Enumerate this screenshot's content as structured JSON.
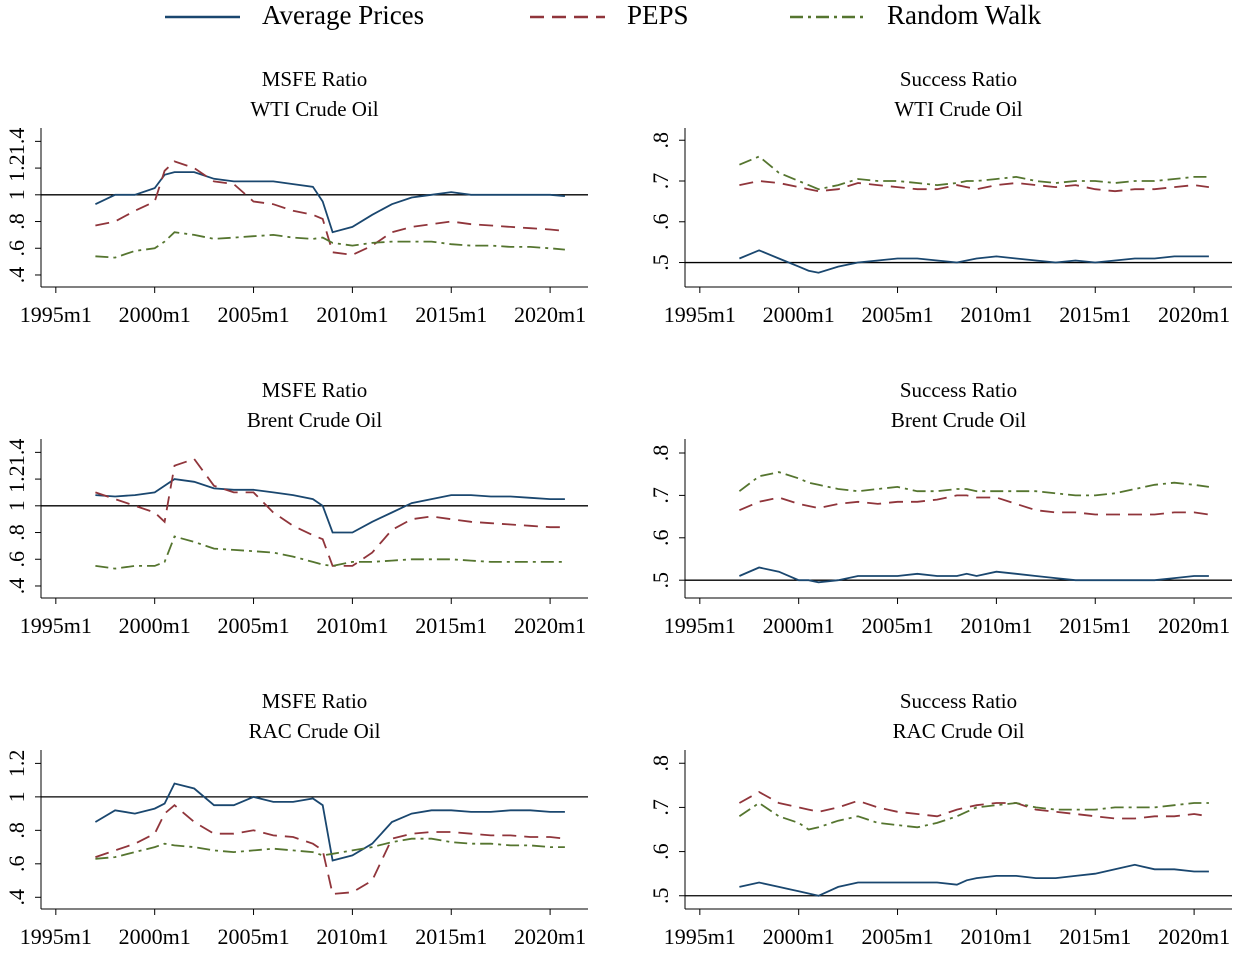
{
  "chart_data": [
    {
      "type": "line",
      "title": "MSFE Ratio",
      "subtitle": "WTI Crude Oil",
      "x": [
        "1997m1",
        "1998m1",
        "1999m1",
        "2000m1",
        "2000m7",
        "2001m1",
        "2002m1",
        "2003m1",
        "2004m1",
        "2005m1",
        "2006m1",
        "2007m1",
        "2008m1",
        "2008m7",
        "2009m1",
        "2010m1",
        "2011m1",
        "2012m1",
        "2013m1",
        "2014m1",
        "2015m1",
        "2016m1",
        "2017m1",
        "2018m1",
        "2019m1",
        "2020m1",
        "2020m10"
      ],
      "xlim": [
        "1994m4",
        "2021m12"
      ],
      "xticks": [
        "1995m1",
        "2000m1",
        "2005m1",
        "2010m1",
        "2015m1",
        "2020m1"
      ],
      "ylim": [
        0.31,
        1.5
      ],
      "yticks": [
        {
          "value": 0.4,
          "label": ".4"
        },
        {
          "value": 0.6,
          "label": ".6"
        },
        {
          "value": 0.8,
          "label": ".8"
        },
        1,
        1.2,
        1.4
      ],
      "hline": 1,
      "series": [
        {
          "name": "Average Prices",
          "color": "#1a476f",
          "style": "solid",
          "values": [
            0.93,
            1.0,
            1.0,
            1.05,
            1.15,
            1.17,
            1.17,
            1.12,
            1.1,
            1.1,
            1.1,
            1.08,
            1.06,
            0.95,
            0.72,
            0.76,
            0.85,
            0.93,
            0.98,
            1.0,
            1.02,
            1.0,
            1.0,
            1.0,
            1.0,
            1.0,
            0.99
          ]
        },
        {
          "name": "PEPS",
          "color": "#90353b",
          "style": "dash",
          "values": [
            0.77,
            0.8,
            0.88,
            0.95,
            1.18,
            1.25,
            1.2,
            1.1,
            1.08,
            0.95,
            0.93,
            0.88,
            0.85,
            0.82,
            0.57,
            0.55,
            0.62,
            0.72,
            0.76,
            0.78,
            0.8,
            0.78,
            0.77,
            0.76,
            0.75,
            0.74,
            0.73
          ]
        },
        {
          "name": "Random Walk",
          "color": "#55752f",
          "style": "dashdot",
          "values": [
            0.54,
            0.53,
            0.58,
            0.6,
            0.65,
            0.72,
            0.7,
            0.67,
            0.68,
            0.69,
            0.7,
            0.68,
            0.67,
            0.68,
            0.64,
            0.62,
            0.64,
            0.65,
            0.65,
            0.65,
            0.63,
            0.62,
            0.62,
            0.61,
            0.61,
            0.6,
            0.59
          ]
        }
      ]
    },
    {
      "type": "line",
      "title": "Success Ratio",
      "subtitle": "WTI Crude Oil",
      "x": [
        "1997m1",
        "1998m1",
        "1999m1",
        "2000m1",
        "2000m7",
        "2001m1",
        "2002m1",
        "2003m1",
        "2004m1",
        "2005m1",
        "2006m1",
        "2007m1",
        "2008m1",
        "2008m7",
        "2009m1",
        "2010m1",
        "2011m1",
        "2012m1",
        "2013m1",
        "2014m1",
        "2015m1",
        "2016m1",
        "2017m1",
        "2018m1",
        "2019m1",
        "2020m1",
        "2020m10"
      ],
      "xlim": [
        "1994m4",
        "2021m12"
      ],
      "xticks": [
        "1995m1",
        "2000m1",
        "2005m1",
        "2010m1",
        "2015m1",
        "2020m1"
      ],
      "ylim": [
        0.44,
        0.83
      ],
      "yticks": [
        {
          "value": 0.5,
          "label": ".5"
        },
        {
          "value": 0.6,
          "label": ".6"
        },
        {
          "value": 0.7,
          "label": ".7"
        },
        {
          "value": 0.8,
          "label": ".8"
        }
      ],
      "hline": 0.5,
      "series": [
        {
          "name": "Average Prices",
          "color": "#1a476f",
          "style": "solid",
          "values": [
            0.51,
            0.53,
            0.51,
            0.49,
            0.48,
            0.475,
            0.49,
            0.5,
            0.505,
            0.51,
            0.51,
            0.505,
            0.5,
            0.505,
            0.51,
            0.515,
            0.51,
            0.505,
            0.5,
            0.505,
            0.5,
            0.505,
            0.51,
            0.51,
            0.515,
            0.515,
            0.515
          ]
        },
        {
          "name": "PEPS",
          "color": "#90353b",
          "style": "dash",
          "values": [
            0.69,
            0.7,
            0.695,
            0.685,
            0.68,
            0.675,
            0.68,
            0.695,
            0.69,
            0.685,
            0.68,
            0.68,
            0.69,
            0.685,
            0.68,
            0.69,
            0.695,
            0.69,
            0.685,
            0.69,
            0.68,
            0.675,
            0.68,
            0.68,
            0.685,
            0.69,
            0.685
          ]
        },
        {
          "name": "Random Walk",
          "color": "#55752f",
          "style": "dashdot",
          "values": [
            0.74,
            0.76,
            0.72,
            0.7,
            0.69,
            0.68,
            0.69,
            0.705,
            0.7,
            0.7,
            0.695,
            0.69,
            0.695,
            0.7,
            0.7,
            0.705,
            0.71,
            0.7,
            0.695,
            0.7,
            0.7,
            0.695,
            0.7,
            0.7,
            0.705,
            0.71,
            0.71
          ]
        }
      ]
    },
    {
      "type": "line",
      "title": "MSFE Ratio",
      "subtitle": "Brent Crude Oil",
      "x": [
        "1997m1",
        "1998m1",
        "1999m1",
        "2000m1",
        "2000m7",
        "2001m1",
        "2002m1",
        "2003m1",
        "2004m1",
        "2005m1",
        "2006m1",
        "2007m1",
        "2008m1",
        "2008m7",
        "2009m1",
        "2010m1",
        "2011m1",
        "2012m1",
        "2013m1",
        "2014m1",
        "2015m1",
        "2016m1",
        "2017m1",
        "2018m1",
        "2019m1",
        "2020m1",
        "2020m10"
      ],
      "xlim": [
        "1994m4",
        "2021m12"
      ],
      "xticks": [
        "1995m1",
        "2000m1",
        "2005m1",
        "2010m1",
        "2015m1",
        "2020m1"
      ],
      "ylim": [
        0.31,
        1.5
      ],
      "yticks": [
        {
          "value": 0.4,
          "label": ".4"
        },
        {
          "value": 0.6,
          "label": ".6"
        },
        {
          "value": 0.8,
          "label": ".8"
        },
        1,
        1.2,
        1.4
      ],
      "hline": 1,
      "series": [
        {
          "name": "Average Prices",
          "color": "#1a476f",
          "style": "solid",
          "values": [
            1.08,
            1.07,
            1.08,
            1.1,
            1.15,
            1.2,
            1.18,
            1.13,
            1.12,
            1.12,
            1.1,
            1.08,
            1.05,
            1.0,
            0.8,
            0.8,
            0.88,
            0.95,
            1.02,
            1.05,
            1.08,
            1.08,
            1.07,
            1.07,
            1.06,
            1.05,
            1.05
          ]
        },
        {
          "name": "PEPS",
          "color": "#90353b",
          "style": "dash",
          "values": [
            1.1,
            1.05,
            1.0,
            0.95,
            0.88,
            1.3,
            1.35,
            1.15,
            1.1,
            1.1,
            0.95,
            0.85,
            0.78,
            0.75,
            0.55,
            0.55,
            0.65,
            0.82,
            0.9,
            0.92,
            0.9,
            0.88,
            0.87,
            0.86,
            0.85,
            0.84,
            0.84
          ]
        },
        {
          "name": "Random Walk",
          "color": "#55752f",
          "style": "dashdot",
          "values": [
            0.55,
            0.53,
            0.55,
            0.55,
            0.58,
            0.77,
            0.73,
            0.68,
            0.67,
            0.66,
            0.65,
            0.62,
            0.58,
            0.56,
            0.55,
            0.58,
            0.58,
            0.59,
            0.6,
            0.6,
            0.6,
            0.59,
            0.58,
            0.58,
            0.58,
            0.58,
            0.58
          ]
        }
      ]
    },
    {
      "type": "line",
      "title": "Success Ratio",
      "subtitle": "Brent Crude Oil",
      "x": [
        "1997m1",
        "1998m1",
        "1999m1",
        "2000m1",
        "2000m7",
        "2001m1",
        "2002m1",
        "2003m1",
        "2004m1",
        "2005m1",
        "2006m1",
        "2007m1",
        "2008m1",
        "2008m7",
        "2009m1",
        "2010m1",
        "2011m1",
        "2012m1",
        "2013m1",
        "2014m1",
        "2015m1",
        "2016m1",
        "2017m1",
        "2018m1",
        "2019m1",
        "2020m1",
        "2020m10"
      ],
      "xlim": [
        "1994m4",
        "2021m12"
      ],
      "xticks": [
        "1995m1",
        "2000m1",
        "2005m1",
        "2010m1",
        "2015m1",
        "2020m1"
      ],
      "ylim": [
        0.458,
        0.833
      ],
      "yticks": [
        {
          "value": 0.5,
          "label": ".5"
        },
        {
          "value": 0.6,
          "label": ".6"
        },
        {
          "value": 0.7,
          "label": ".7"
        },
        {
          "value": 0.8,
          "label": ".8"
        }
      ],
      "hline": 0.5,
      "series": [
        {
          "name": "Average Prices",
          "color": "#1a476f",
          "style": "solid",
          "values": [
            0.51,
            0.53,
            0.52,
            0.5,
            0.5,
            0.495,
            0.5,
            0.51,
            0.51,
            0.51,
            0.515,
            0.51,
            0.51,
            0.515,
            0.51,
            0.52,
            0.515,
            0.51,
            0.505,
            0.5,
            0.5,
            0.5,
            0.5,
            0.5,
            0.505,
            0.51,
            0.51
          ]
        },
        {
          "name": "PEPS",
          "color": "#90353b",
          "style": "dash",
          "values": [
            0.665,
            0.685,
            0.695,
            0.68,
            0.675,
            0.67,
            0.68,
            0.685,
            0.68,
            0.685,
            0.685,
            0.69,
            0.7,
            0.7,
            0.695,
            0.695,
            0.68,
            0.665,
            0.66,
            0.66,
            0.655,
            0.655,
            0.655,
            0.655,
            0.66,
            0.66,
            0.655
          ]
        },
        {
          "name": "Random Walk",
          "color": "#55752f",
          "style": "dashdot",
          "values": [
            0.71,
            0.745,
            0.755,
            0.74,
            0.73,
            0.725,
            0.715,
            0.71,
            0.715,
            0.72,
            0.71,
            0.71,
            0.715,
            0.715,
            0.71,
            0.71,
            0.71,
            0.71,
            0.705,
            0.7,
            0.7,
            0.705,
            0.715,
            0.725,
            0.73,
            0.725,
            0.72
          ]
        }
      ]
    },
    {
      "type": "line",
      "title": "MSFE Ratio",
      "subtitle": "RAC Crude Oil",
      "x": [
        "1997m1",
        "1998m1",
        "1999m1",
        "2000m1",
        "2000m7",
        "2001m1",
        "2002m1",
        "2003m1",
        "2004m1",
        "2005m1",
        "2006m1",
        "2007m1",
        "2008m1",
        "2008m7",
        "2009m1",
        "2010m1",
        "2011m1",
        "2012m1",
        "2013m1",
        "2014m1",
        "2015m1",
        "2016m1",
        "2017m1",
        "2018m1",
        "2019m1",
        "2020m1",
        "2020m10"
      ],
      "xlim": [
        "1994m4",
        "2021m12"
      ],
      "xticks": [
        "1995m1",
        "2000m1",
        "2005m1",
        "2010m1",
        "2015m1",
        "2020m1"
      ],
      "ylim": [
        0.33,
        1.28
      ],
      "yticks": [
        {
          "value": 0.4,
          "label": ".4"
        },
        {
          "value": 0.6,
          "label": ".6"
        },
        {
          "value": 0.8,
          "label": ".8"
        },
        1,
        1.2
      ],
      "hline": 1,
      "series": [
        {
          "name": "Average Prices",
          "color": "#1a476f",
          "style": "solid",
          "values": [
            0.85,
            0.92,
            0.9,
            0.93,
            0.96,
            1.08,
            1.05,
            0.95,
            0.95,
            1.0,
            0.97,
            0.97,
            0.99,
            0.95,
            0.62,
            0.65,
            0.72,
            0.85,
            0.9,
            0.92,
            0.92,
            0.91,
            0.91,
            0.92,
            0.92,
            0.91,
            0.91
          ]
        },
        {
          "name": "PEPS",
          "color": "#90353b",
          "style": "dash",
          "values": [
            0.64,
            0.68,
            0.72,
            0.78,
            0.9,
            0.95,
            0.85,
            0.78,
            0.78,
            0.8,
            0.77,
            0.76,
            0.72,
            0.68,
            0.42,
            0.43,
            0.5,
            0.75,
            0.78,
            0.79,
            0.79,
            0.78,
            0.77,
            0.77,
            0.76,
            0.76,
            0.75
          ]
        },
        {
          "name": "Random Walk",
          "color": "#55752f",
          "style": "dashdot",
          "values": [
            0.63,
            0.64,
            0.67,
            0.7,
            0.72,
            0.71,
            0.7,
            0.68,
            0.67,
            0.68,
            0.69,
            0.68,
            0.67,
            0.65,
            0.66,
            0.68,
            0.7,
            0.73,
            0.75,
            0.75,
            0.73,
            0.72,
            0.72,
            0.71,
            0.71,
            0.7,
            0.7
          ]
        }
      ]
    },
    {
      "type": "line",
      "title": "Success Ratio",
      "subtitle": "RAC Crude Oil",
      "x": [
        "1997m1",
        "1998m1",
        "1999m1",
        "2000m1",
        "2000m7",
        "2001m1",
        "2002m1",
        "2003m1",
        "2004m1",
        "2005m1",
        "2006m1",
        "2007m1",
        "2008m1",
        "2008m7",
        "2009m1",
        "2010m1",
        "2011m1",
        "2012m1",
        "2013m1",
        "2014m1",
        "2015m1",
        "2016m1",
        "2017m1",
        "2018m1",
        "2019m1",
        "2020m1",
        "2020m10"
      ],
      "xlim": [
        "1994m4",
        "2021m12"
      ],
      "xticks": [
        "1995m1",
        "2000m1",
        "2005m1",
        "2010m1",
        "2015m1",
        "2020m1"
      ],
      "ylim": [
        0.47,
        0.83
      ],
      "yticks": [
        {
          "value": 0.5,
          "label": ".5"
        },
        {
          "value": 0.6,
          "label": ".6"
        },
        {
          "value": 0.7,
          "label": ".7"
        },
        {
          "value": 0.8,
          "label": ".8"
        }
      ],
      "hline": 0.5,
      "series": [
        {
          "name": "Average Prices",
          "color": "#1a476f",
          "style": "solid",
          "values": [
            0.52,
            0.53,
            0.52,
            0.51,
            0.505,
            0.5,
            0.52,
            0.53,
            0.53,
            0.53,
            0.53,
            0.53,
            0.525,
            0.535,
            0.54,
            0.545,
            0.545,
            0.54,
            0.54,
            0.545,
            0.55,
            0.56,
            0.57,
            0.56,
            0.56,
            0.555,
            0.555
          ]
        },
        {
          "name": "PEPS",
          "color": "#90353b",
          "style": "dash",
          "values": [
            0.71,
            0.735,
            0.71,
            0.7,
            0.695,
            0.69,
            0.7,
            0.715,
            0.7,
            0.69,
            0.685,
            0.68,
            0.695,
            0.7,
            0.705,
            0.71,
            0.71,
            0.695,
            0.69,
            0.685,
            0.68,
            0.675,
            0.675,
            0.68,
            0.68,
            0.685,
            0.68
          ]
        },
        {
          "name": "Random Walk",
          "color": "#55752f",
          "style": "dashdot",
          "values": [
            0.68,
            0.71,
            0.68,
            0.665,
            0.65,
            0.655,
            0.67,
            0.68,
            0.665,
            0.66,
            0.655,
            0.665,
            0.68,
            0.69,
            0.7,
            0.705,
            0.71,
            0.7,
            0.695,
            0.695,
            0.695,
            0.7,
            0.7,
            0.7,
            0.705,
            0.71,
            0.71
          ]
        }
      ]
    }
  ]
}
